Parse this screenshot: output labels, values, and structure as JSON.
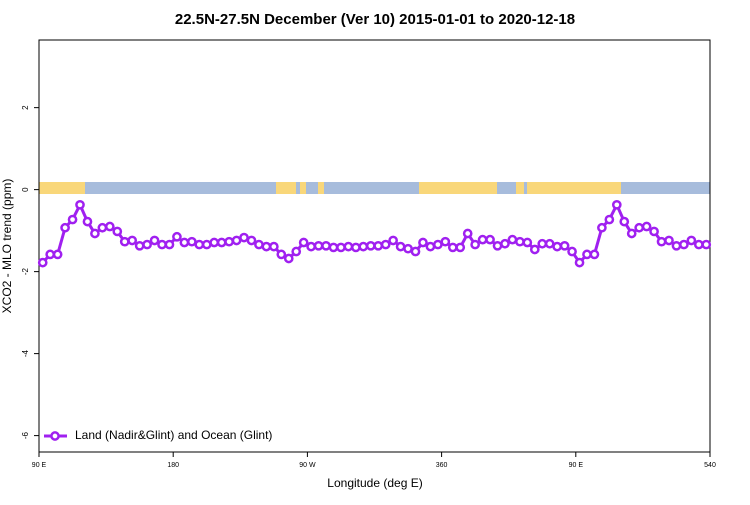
{
  "chart_data": {
    "type": "line",
    "title": "22.5N-27.5N December (Ver 10)   2015-01-01 to 2020-12-18",
    "x_label": "Longitude (deg E)",
    "y_label": "XCO2 - MLO trend (ppm)",
    "x": [
      92.5,
      97.5,
      102.5,
      107.5,
      112.5,
      117.5,
      122.5,
      127.5,
      132.5,
      137.5,
      142.5,
      147.5,
      152.5,
      157.5,
      162.5,
      167.5,
      172.5,
      177.5,
      182.5,
      187.5,
      192.5,
      197.5,
      202.5,
      207.5,
      212.5,
      217.5,
      222.5,
      227.5,
      232.5,
      237.5,
      242.5,
      247.5,
      252.5,
      257.5,
      262.5,
      267.5,
      272.5,
      277.5,
      282.5,
      287.5,
      292.5,
      297.5,
      302.5,
      307.5,
      312.5,
      317.5,
      322.5,
      327.5,
      332.5,
      337.5,
      342.5,
      347.5,
      352.5,
      357.5,
      362.5,
      367.5,
      372.5,
      377.5,
      382.5,
      387.5,
      392.5,
      397.5,
      402.5,
      407.5,
      412.5,
      417.5,
      422.5,
      427.5,
      432.5,
      437.5,
      442.5,
      447.5,
      452.5,
      457.5,
      462.5,
      467.5,
      472.5,
      477.5,
      482.5,
      487.5,
      492.5,
      497.5,
      502.5,
      507.5,
      512.5,
      517.5,
      522.5,
      527.5,
      532.5,
      537.5
    ],
    "series": [
      {
        "name": "Land (Nadir&Glint) and Ocean (Glint)",
        "color": "#a020f0",
        "values": [
          -1.78,
          -1.58,
          -1.58,
          -0.93,
          -0.73,
          -0.37,
          -0.78,
          -1.07,
          -0.93,
          -0.9,
          -1.02,
          -1.27,
          -1.24,
          -1.37,
          -1.34,
          -1.24,
          -1.34,
          -1.34,
          -1.15,
          -1.29,
          -1.27,
          -1.34,
          -1.34,
          -1.29,
          -1.29,
          -1.27,
          -1.24,
          -1.17,
          -1.24,
          -1.34,
          -1.39,
          -1.39,
          -1.58,
          -1.68,
          -1.51,
          -1.29,
          -1.39,
          -1.37,
          -1.37,
          -1.41,
          -1.41,
          -1.39,
          -1.41,
          -1.39,
          -1.37,
          -1.37,
          -1.34,
          -1.24,
          -1.39,
          -1.44,
          -1.51,
          -1.29,
          -1.39,
          -1.34,
          -1.27,
          -1.41,
          -1.41,
          -1.07,
          -1.34,
          -1.22,
          -1.22,
          -1.37,
          -1.32,
          -1.22,
          -1.27,
          -1.29,
          -1.46,
          -1.32,
          -1.32,
          -1.39,
          -1.37,
          -1.51,
          -1.78,
          -1.58,
          -1.58,
          -0.93,
          -0.73,
          -0.37,
          -0.78,
          -1.07,
          -0.93,
          -0.9,
          -1.02,
          -1.27,
          -1.24,
          -1.37,
          -1.34,
          -1.24,
          -1.34,
          -1.34
        ]
      }
    ],
    "xlim": [
      90,
      540
    ],
    "xticks": [
      {
        "value": 90,
        "label": "90 E"
      },
      180,
      {
        "value": 270,
        "label": "90 W"
      },
      360,
      {
        "value": 450,
        "label": "90 E"
      },
      540
    ],
    "ylim": [
      -6.4,
      3.65
    ],
    "yticks": [
      -6,
      -4,
      -2,
      0,
      2
    ],
    "legend": "bottom-left"
  }
}
